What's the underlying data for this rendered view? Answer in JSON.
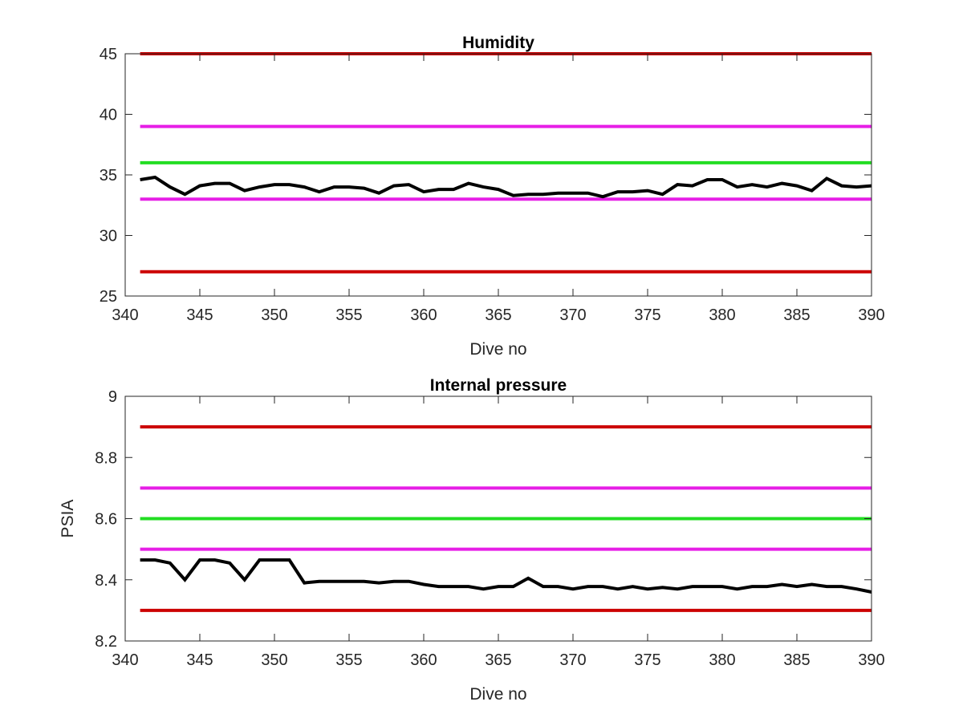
{
  "chart_data": [
    {
      "type": "line",
      "title": "Humidity",
      "xlabel": "Dive no",
      "ylabel": "",
      "xlim": [
        340,
        390
      ],
      "ylim": [
        25,
        45
      ],
      "xticks": [
        340,
        345,
        350,
        355,
        360,
        365,
        370,
        375,
        380,
        385,
        390
      ],
      "yticks": [
        25,
        30,
        35,
        40,
        45
      ],
      "xtick_labels": [
        "340",
        "345",
        "350",
        "355",
        "360",
        "365",
        "370",
        "375",
        "380",
        "385",
        "390"
      ],
      "ytick_labels": [
        "25",
        "30",
        "35",
        "40",
        "45"
      ],
      "grid": false,
      "reference_lines": [
        {
          "y": 45,
          "color": "#cc0000"
        },
        {
          "y": 39,
          "color": "#e61ee6"
        },
        {
          "y": 36,
          "color": "#22dd22"
        },
        {
          "y": 33,
          "color": "#e61ee6"
        },
        {
          "y": 27,
          "color": "#cc0000"
        }
      ],
      "series": [
        {
          "color": "#000000",
          "x": [
            341,
            342,
            343,
            344,
            345,
            346,
            347,
            348,
            349,
            350,
            351,
            352,
            353,
            354,
            355,
            356,
            357,
            358,
            359,
            360,
            361,
            362,
            363,
            364,
            365,
            366,
            367,
            368,
            369,
            370,
            371,
            372,
            373,
            374,
            375,
            376,
            377,
            378,
            379,
            380,
            381,
            382,
            383,
            384,
            385,
            386,
            387,
            388,
            389,
            390
          ],
          "y": [
            34.6,
            34.8,
            34.0,
            33.4,
            34.1,
            34.3,
            34.3,
            33.7,
            34.0,
            34.2,
            34.2,
            34.0,
            33.6,
            34.0,
            34.0,
            33.9,
            33.5,
            34.1,
            34.2,
            33.6,
            33.8,
            33.8,
            34.3,
            34.0,
            33.8,
            33.3,
            33.4,
            33.4,
            33.5,
            33.5,
            33.5,
            33.2,
            33.6,
            33.6,
            33.7,
            33.4,
            34.2,
            34.1,
            34.6,
            34.6,
            34.0,
            34.2,
            34.0,
            34.3,
            34.1,
            33.7,
            34.7,
            34.1,
            34.0,
            34.1
          ]
        }
      ]
    },
    {
      "type": "line",
      "title": "Internal pressure",
      "xlabel": "Dive no",
      "ylabel": "PSIA",
      "xlim": [
        340,
        390
      ],
      "ylim": [
        8.2,
        9.0
      ],
      "xticks": [
        340,
        345,
        350,
        355,
        360,
        365,
        370,
        375,
        380,
        385,
        390
      ],
      "yticks": [
        8.2,
        8.4,
        8.6,
        8.8,
        9.0
      ],
      "xtick_labels": [
        "340",
        "345",
        "350",
        "355",
        "360",
        "365",
        "370",
        "375",
        "380",
        "385",
        "390"
      ],
      "ytick_labels": [
        "8.2",
        "8.4",
        "8.6",
        "8.8",
        "9"
      ],
      "grid": false,
      "reference_lines": [
        {
          "y": 8.9,
          "color": "#cc0000"
        },
        {
          "y": 8.7,
          "color": "#e61ee6"
        },
        {
          "y": 8.6,
          "color": "#22dd22"
        },
        {
          "y": 8.5,
          "color": "#e61ee6"
        },
        {
          "y": 8.3,
          "color": "#cc0000"
        }
      ],
      "series": [
        {
          "color": "#000000",
          "x": [
            341,
            342,
            343,
            344,
            345,
            346,
            347,
            348,
            349,
            350,
            351,
            352,
            353,
            354,
            355,
            356,
            357,
            358,
            359,
            360,
            361,
            362,
            363,
            364,
            365,
            366,
            367,
            368,
            369,
            370,
            371,
            372,
            373,
            374,
            375,
            376,
            377,
            378,
            379,
            380,
            381,
            382,
            383,
            384,
            385,
            386,
            387,
            388,
            389,
            390
          ],
          "y": [
            8.465,
            8.465,
            8.455,
            8.4,
            8.465,
            8.465,
            8.455,
            8.4,
            8.465,
            8.465,
            8.465,
            8.39,
            8.395,
            8.395,
            8.395,
            8.395,
            8.39,
            8.395,
            8.395,
            8.385,
            8.378,
            8.378,
            8.378,
            8.37,
            8.378,
            8.378,
            8.405,
            8.378,
            8.378,
            8.37,
            8.378,
            8.378,
            8.37,
            8.378,
            8.37,
            8.375,
            8.37,
            8.378,
            8.378,
            8.378,
            8.37,
            8.378,
            8.378,
            8.385,
            8.378,
            8.385,
            8.378,
            8.378,
            8.37,
            8.36
          ]
        }
      ]
    }
  ]
}
